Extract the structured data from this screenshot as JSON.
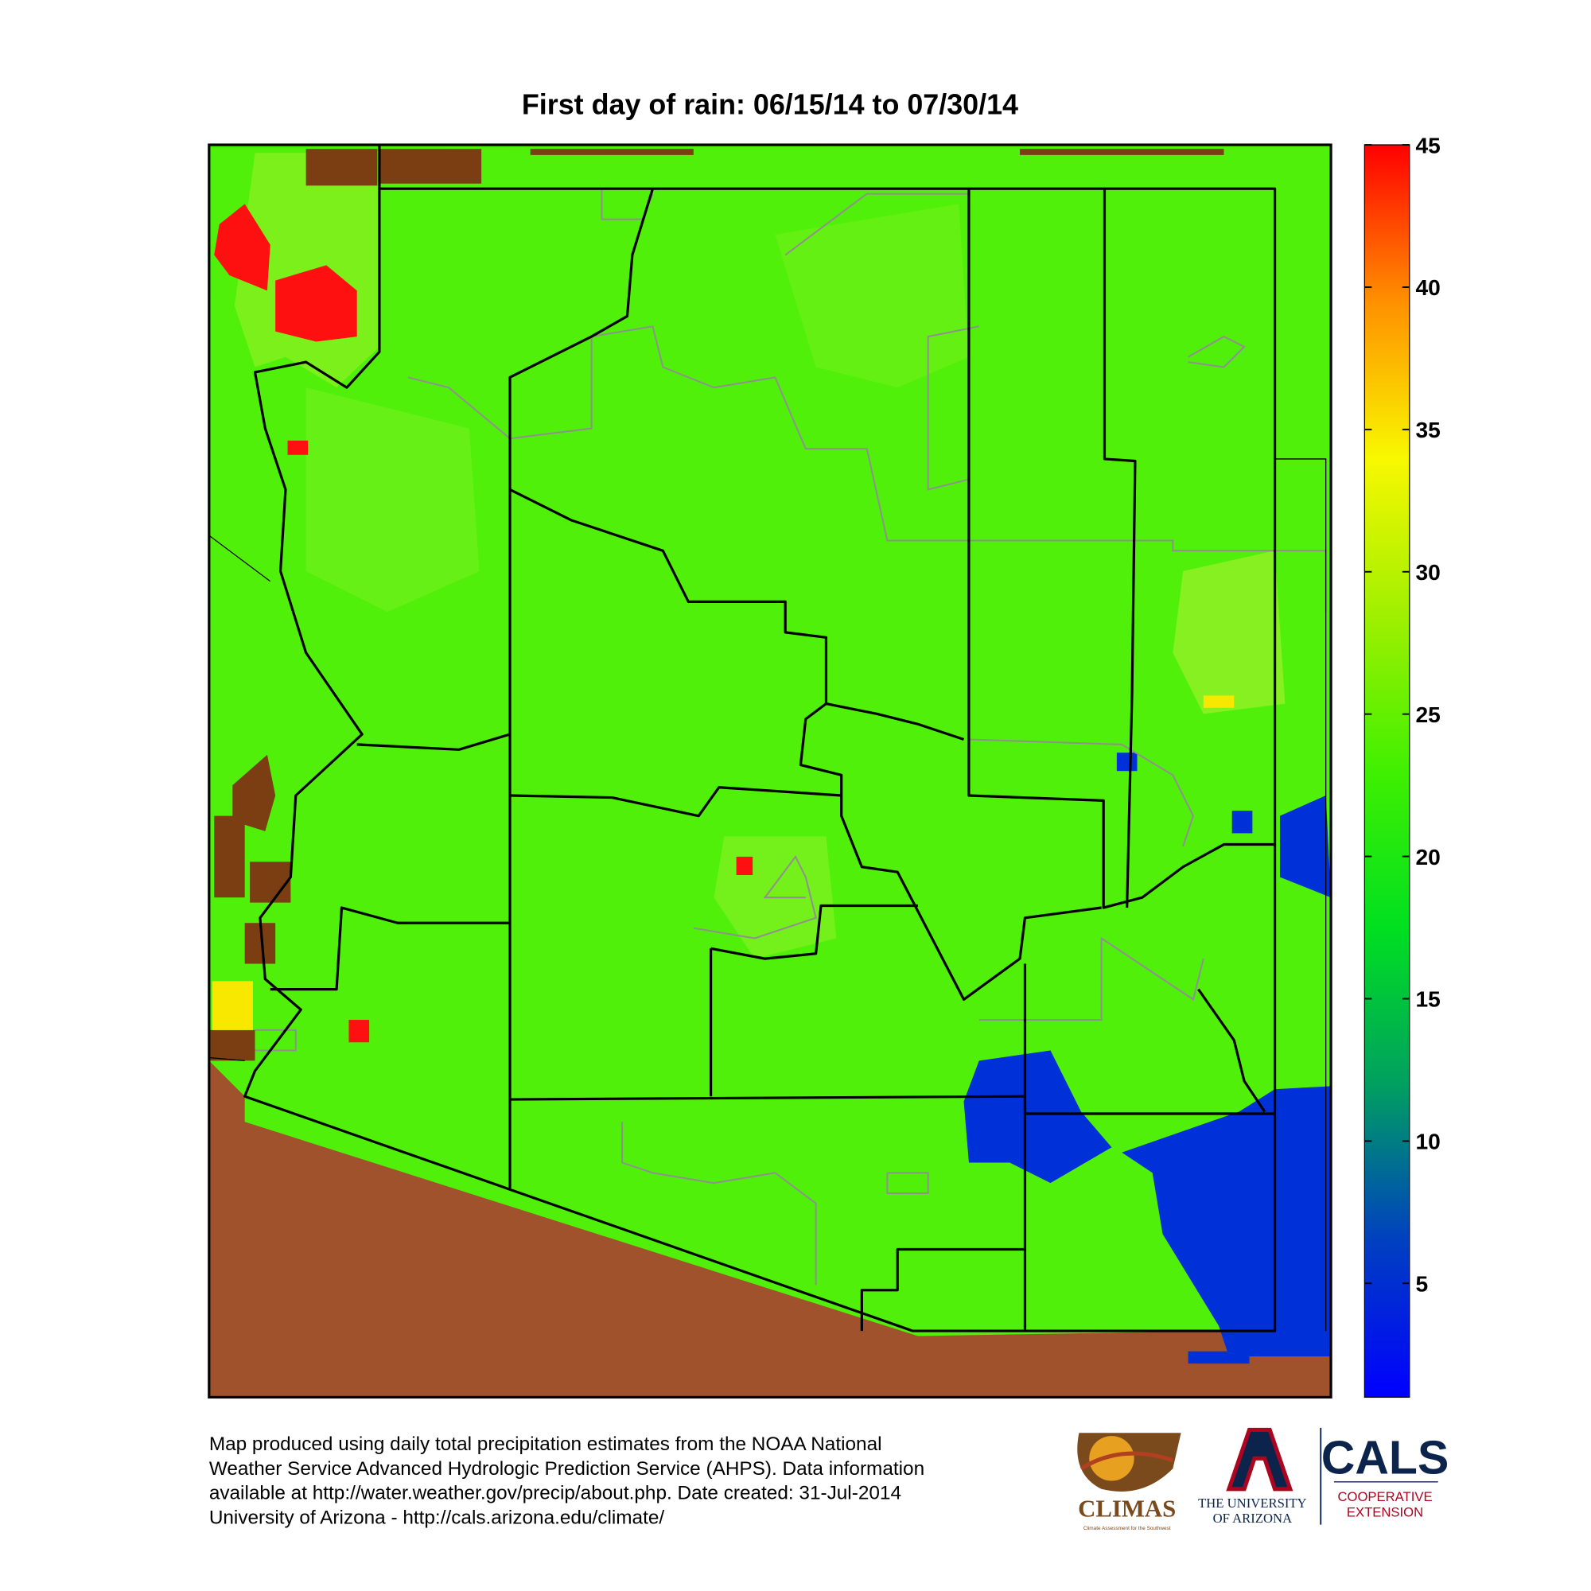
{
  "title": "First day of rain: 06/15/14 to 07/30/14",
  "colorbar": {
    "lim": [
      1,
      45
    ],
    "ticks": [
      5,
      10,
      15,
      20,
      25,
      30,
      35,
      40,
      45
    ],
    "colors": [
      "#0000ff",
      "#0040c0",
      "#00a060",
      "#00e020",
      "#40f000",
      "#a0f000",
      "#f8f800",
      "#ff9000",
      "#ff0000"
    ]
  },
  "footer": [
    "Map produced using daily total precipitation estimates from the NOAA National",
    "Weather Service Advanced Hydrologic Prediction Service (AHPS). Data information",
    "available at http://water.weather.gov/precip/about.php. Date created: 31-Jul-2014",
    "University of Arizona - http://cals.arizona.edu/climate/"
  ],
  "logos": {
    "climas": "CLIMAS",
    "climas_tagline": "Climate Assessment for the Southwest",
    "university": [
      "THE UNIVERSITY",
      "OF ARIZONA"
    ],
    "cals": "CALS",
    "extension": [
      "COOPERATIVE",
      "EXTENSION"
    ]
  }
}
